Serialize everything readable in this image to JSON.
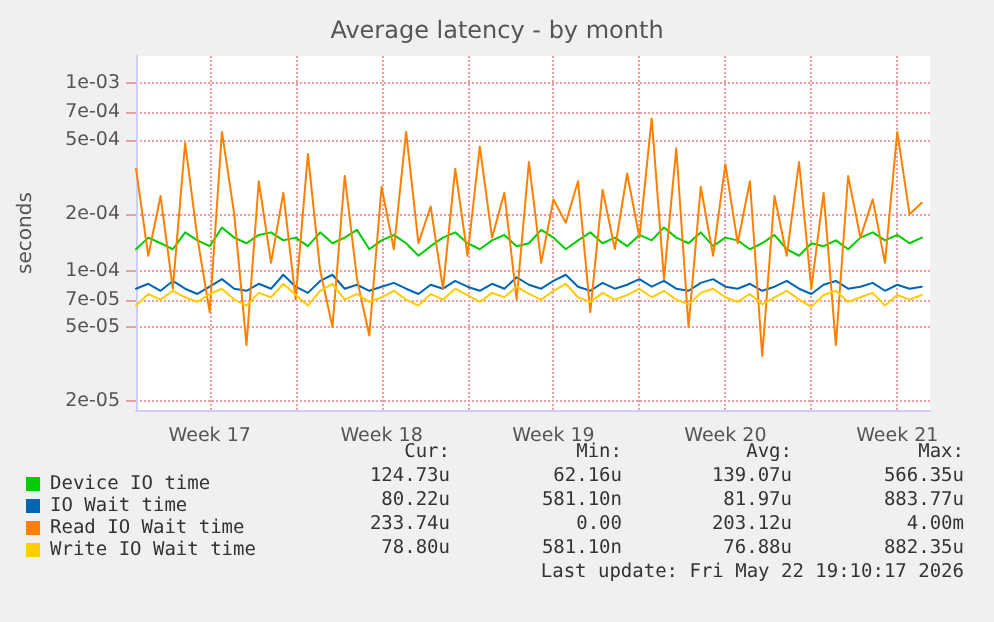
{
  "chart_data": {
    "type": "line",
    "title": "Average latency - by month",
    "ylabel": "seconds",
    "x": [
      "2026-04-20T12:00",
      "2026-04-21T00:00",
      "2026-04-21T12:00",
      "2026-04-22T00:00",
      "2026-04-22T12:00",
      "2026-04-23T00:00",
      "2026-04-23T12:00",
      "2026-04-24T00:00",
      "2026-04-24T12:00",
      "2026-04-25T00:00",
      "2026-04-25T12:00",
      "2026-04-26T00:00",
      "2026-04-26T12:00",
      "2026-04-27T00:00",
      "2026-04-27T12:00",
      "2026-04-28T00:00",
      "2026-04-28T12:00",
      "2026-04-29T00:00",
      "2026-04-29T12:00",
      "2026-04-30T00:00",
      "2026-04-30T12:00",
      "2026-05-01T00:00",
      "2026-05-01T12:00",
      "2026-05-02T00:00",
      "2026-05-02T12:00",
      "2026-05-03T00:00",
      "2026-05-03T12:00",
      "2026-05-04T00:00",
      "2026-05-04T12:00",
      "2026-05-05T00:00",
      "2026-05-05T12:00",
      "2026-05-06T00:00",
      "2026-05-06T12:00",
      "2026-05-07T00:00",
      "2026-05-07T12:00",
      "2026-05-08T00:00",
      "2026-05-08T12:00",
      "2026-05-09T00:00",
      "2026-05-09T12:00",
      "2026-05-10T00:00",
      "2026-05-10T12:00",
      "2026-05-11T00:00",
      "2026-05-11T12:00",
      "2026-05-12T00:00",
      "2026-05-12T12:00",
      "2026-05-13T00:00",
      "2026-05-13T12:00",
      "2026-05-14T00:00",
      "2026-05-14T12:00",
      "2026-05-15T00:00",
      "2026-05-15T12:00",
      "2026-05-16T00:00",
      "2026-05-16T12:00",
      "2026-05-17T00:00",
      "2026-05-17T12:00",
      "2026-05-18T00:00",
      "2026-05-18T12:00",
      "2026-05-19T00:00",
      "2026-05-19T12:00",
      "2026-05-20T00:00",
      "2026-05-20T12:00",
      "2026-05-21T00:00",
      "2026-05-21T12:00",
      "2026-05-22T00:00",
      "2026-05-22T12:00"
    ],
    "series": [
      {
        "name": "Device IO time",
        "color": "#00cc00",
        "values": [
          0.00013,
          0.00015,
          0.00014,
          0.00013,
          0.00016,
          0.000145,
          0.000135,
          0.00017,
          0.00015,
          0.00014,
          0.000155,
          0.00016,
          0.000145,
          0.00015,
          0.000135,
          0.00016,
          0.00014,
          0.00015,
          0.000165,
          0.00013,
          0.000145,
          0.000155,
          0.00014,
          0.00012,
          0.000135,
          0.00015,
          0.00016,
          0.00014,
          0.00013,
          0.000145,
          0.000155,
          0.000135,
          0.00014,
          0.000165,
          0.00015,
          0.00013,
          0.000145,
          0.00016,
          0.00014,
          0.00015,
          0.000135,
          0.000155,
          0.000145,
          0.00017,
          0.00015,
          0.00014,
          0.00016,
          0.000135,
          0.00015,
          0.000145,
          0.00013,
          0.00014,
          0.000155,
          0.00013,
          0.00012,
          0.00014,
          0.000135,
          0.000145,
          0.00013,
          0.00015,
          0.00016,
          0.000145,
          0.000155,
          0.00014,
          0.00015
        ]
      },
      {
        "name": "IO Wait time",
        "color": "#0066b3",
        "values": [
          8e-05,
          8.5e-05,
          7.8e-05,
          8.8e-05,
          8e-05,
          7.5e-05,
          8.2e-05,
          9e-05,
          8e-05,
          7.8e-05,
          8.5e-05,
          8e-05,
          9.5e-05,
          8.2e-05,
          7.6e-05,
          8.8e-05,
          9.5e-05,
          8e-05,
          8.4e-05,
          7.8e-05,
          8.2e-05,
          8.6e-05,
          8e-05,
          7.5e-05,
          8.4e-05,
          8e-05,
          8.8e-05,
          8.2e-05,
          7.8e-05,
          8.5e-05,
          8e-05,
          9.2e-05,
          8.4e-05,
          8e-05,
          8.8e-05,
          9.5e-05,
          8.2e-05,
          7.8e-05,
          8.6e-05,
          8e-05,
          8.4e-05,
          9e-05,
          8.2e-05,
          8.8e-05,
          8e-05,
          7.8e-05,
          8.6e-05,
          9e-05,
          8.2e-05,
          8e-05,
          8.5e-05,
          7.8e-05,
          8.2e-05,
          8.8e-05,
          8e-05,
          7.5e-05,
          8.4e-05,
          8.8e-05,
          8e-05,
          8.2e-05,
          8.6e-05,
          7.8e-05,
          8.4e-05,
          8e-05,
          8.2e-05
        ]
      },
      {
        "name": "Read IO Wait time",
        "color": "#ff8000",
        "values": [
          0.00035,
          0.00012,
          0.00025,
          8e-05,
          0.00048,
          0.00015,
          6e-05,
          0.00055,
          0.0002,
          4e-05,
          0.0003,
          0.00011,
          0.00026,
          7e-05,
          0.00042,
          0.0001,
          5e-05,
          0.00032,
          9e-05,
          4.5e-05,
          0.00028,
          0.00013,
          0.00055,
          0.00014,
          0.00022,
          8e-05,
          0.00035,
          0.00012,
          0.00046,
          0.00015,
          0.00026,
          7e-05,
          0.00038,
          0.00011,
          0.00024,
          0.00018,
          0.0003,
          6e-05,
          0.00027,
          0.00013,
          0.00033,
          0.00015,
          0.00065,
          9e-05,
          0.00045,
          5e-05,
          0.00028,
          0.00012,
          0.00037,
          0.00014,
          0.0003,
          3.5e-05,
          0.00025,
          0.00012,
          0.00038,
          8e-05,
          0.00026,
          4e-05,
          0.00032,
          0.00015,
          0.00024,
          0.00011,
          0.00055,
          0.0002,
          0.00023
        ]
      },
      {
        "name": "Write IO Wait time",
        "color": "#ffcc00",
        "values": [
          6.5e-05,
          7.5e-05,
          7e-05,
          7.8e-05,
          7.2e-05,
          6.8e-05,
          7.5e-05,
          8e-05,
          7e-05,
          6.5e-05,
          7.6e-05,
          7.2e-05,
          8.5e-05,
          7.4e-05,
          6.5e-05,
          7.8e-05,
          8.5e-05,
          7e-05,
          7.5e-05,
          6.8e-05,
          7.2e-05,
          7.8e-05,
          7e-05,
          6.5e-05,
          7.5e-05,
          7e-05,
          8e-05,
          7.4e-05,
          6.8e-05,
          7.6e-05,
          7.2e-05,
          8.2e-05,
          7.5e-05,
          7e-05,
          7.8e-05,
          8.5e-05,
          7.2e-05,
          6.8e-05,
          7.6e-05,
          7e-05,
          7.4e-05,
          8e-05,
          7.2e-05,
          7.8e-05,
          7e-05,
          6.6e-05,
          7.6e-05,
          8e-05,
          7.2e-05,
          6.8e-05,
          7.5e-05,
          6.6e-05,
          7.2e-05,
          7.8e-05,
          7e-05,
          6.4e-05,
          7.4e-05,
          7.8e-05,
          6.8e-05,
          7.2e-05,
          7.6e-05,
          6.5e-05,
          7.4e-05,
          7e-05,
          7.4e-05
        ]
      }
    ],
    "xlim": [
      "2026-04-20T12:00",
      "2026-05-22T20:00"
    ],
    "xticks": [
      {
        "value": "2026-04-23T12:00",
        "label": "Week 17"
      },
      {
        "value": "2026-04-27T00:00",
        "label": null
      },
      {
        "value": "2026-04-30T12:00",
        "label": "Week 18"
      },
      {
        "value": "2026-05-04T00:00",
        "label": null
      },
      {
        "value": "2026-05-07T12:00",
        "label": "Week 19"
      },
      {
        "value": "2026-05-11T00:00",
        "label": null
      },
      {
        "value": "2026-05-14T12:00",
        "label": "Week 20"
      },
      {
        "value": "2026-05-18T00:00",
        "label": null
      },
      {
        "value": "2026-05-21T12:00",
        "label": "Week 21"
      }
    ],
    "log": "y",
    "ylim": [
      1.8e-05,
      0.0014
    ],
    "yticks": [
      {
        "value": 2e-05,
        "label": "2e-05"
      },
      {
        "value": 5e-05,
        "label": "5e-05"
      },
      {
        "value": 7e-05,
        "label": "7e-05"
      },
      {
        "value": 0.0001,
        "label": "1e-04"
      },
      {
        "value": 0.0002,
        "label": "2e-04"
      },
      {
        "value": 0.0005,
        "label": "5e-04"
      },
      {
        "value": 0.0007,
        "label": "7e-04"
      },
      {
        "value": 0.001,
        "label": "1e-03"
      }
    ],
    "grid": true,
    "legend": "bottom left",
    "marker": "none",
    "line_style": "solid",
    "annotations": [
      "Cur:",
      "Min:",
      "Avg:",
      "Max:",
      "124.73u",
      "62.16u",
      "139.07u",
      "566.35u",
      "80.22u",
      "581.10n",
      "81.97u",
      "883.77u",
      "233.74u",
      "0.00",
      "203.12u",
      "4.00m",
      "78.80u",
      "581.10n",
      "76.88u",
      "882.35u",
      "Last update: Fri May 22 19:10:17 2026"
    ]
  }
}
